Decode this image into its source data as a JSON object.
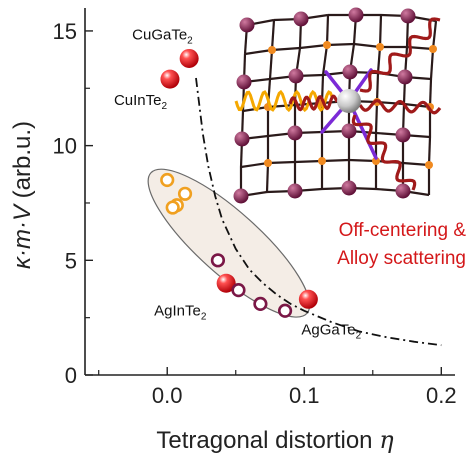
{
  "chart_data": {
    "type": "scatter",
    "xlabel": "Tetragonal distortion",
    "xlabel_symbol": "η",
    "ylabel_prefix": "κ·m·V",
    "ylabel_unit": " (arb.u.)",
    "xlim": [
      -0.06,
      0.21
    ],
    "ylim": [
      0,
      16
    ],
    "xticks": [
      "0.0",
      "0.1",
      "0.2"
    ],
    "yticks": [
      "0",
      "5",
      "10",
      "15"
    ],
    "grid": false,
    "series": [
      {
        "marker": "filled-red-sphere",
        "color": "#e8141b",
        "points": [
          {
            "x": 0.016,
            "y": 13.8,
            "label_main": "CuGaTe",
            "label_sub": "2"
          },
          {
            "x": 0.002,
            "y": 12.9,
            "label_main": "CuInTe",
            "label_sub": "2"
          },
          {
            "x": 0.043,
            "y": 4.0,
            "label_main": "AgInTe",
            "label_sub": "2"
          },
          {
            "x": 0.103,
            "y": 3.3,
            "label_main": "AgGaTe",
            "label_sub": "2"
          }
        ]
      },
      {
        "marker": "open-orange-circle",
        "color": "#f0a020",
        "points": [
          {
            "x": 0.0,
            "y": 8.5
          },
          {
            "x": 0.013,
            "y": 7.9
          },
          {
            "x": 0.007,
            "y": 7.4
          },
          {
            "x": 0.004,
            "y": 7.3
          }
        ]
      },
      {
        "marker": "open-purple-circle",
        "color": "#7a1746",
        "points": [
          {
            "x": 0.037,
            "y": 5.0
          },
          {
            "x": 0.052,
            "y": 3.7
          },
          {
            "x": 0.068,
            "y": 3.1
          },
          {
            "x": 0.086,
            "y": 2.8
          }
        ]
      }
    ],
    "trend_curve": {
      "style": "dash-dot",
      "x": [
        0.021,
        0.026,
        0.03,
        0.035,
        0.04,
        0.05,
        0.06,
        0.07,
        0.08,
        0.09,
        0.1,
        0.12,
        0.14,
        0.16,
        0.18,
        0.2
      ],
      "y": [
        12.95,
        10.5,
        9.1,
        7.8,
        6.8,
        5.5,
        4.6,
        4.0,
        3.5,
        3.1,
        2.8,
        2.3,
        1.9,
        1.65,
        1.45,
        1.3
      ]
    },
    "annotation": {
      "line1": "Off-centering &",
      "line2": "Alloy scattering"
    },
    "colors": {
      "red": "#e8141b",
      "orange": "#f0a020",
      "purple": "#7a1746",
      "lattice_atom": "#7a1746",
      "bond": "#2a1a1a",
      "small_atom": "#f08a20",
      "spring": "#f5a800",
      "wave": "#a01a1a",
      "central_bond": "#7b2ad6"
    }
  }
}
